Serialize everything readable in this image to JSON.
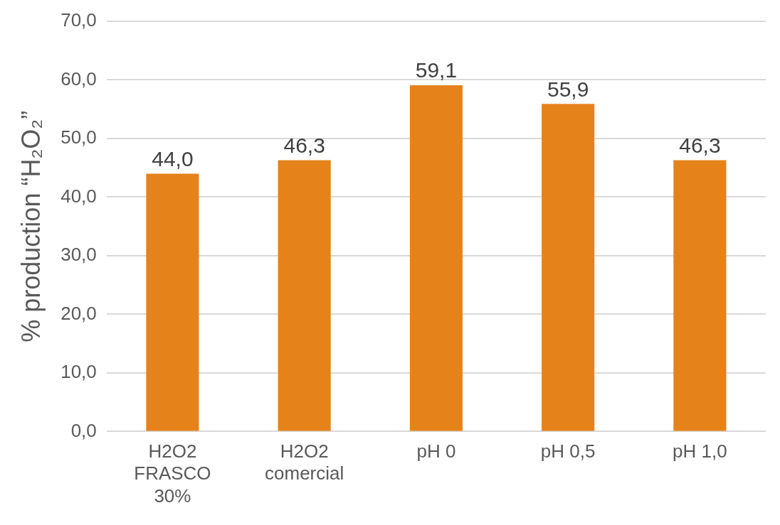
{
  "chart_data": {
    "type": "bar",
    "ylabel": "% production “H₂O₂”",
    "categories": [
      "H2O2 FRASCO 30%",
      "H2O2 comercial",
      "pH 0",
      "pH 0,5",
      "pH 1,0"
    ],
    "values": [
      44.0,
      46.3,
      59.1,
      55.9,
      46.3
    ],
    "value_labels": [
      "44,0",
      "46,3",
      "59,1",
      "55,9",
      "46,3"
    ],
    "color": "#e6821a",
    "ylim": [
      0,
      70
    ],
    "yticks": [
      {
        "value": 0,
        "label": "0,0"
      },
      {
        "value": 10,
        "label": "10,0"
      },
      {
        "value": 20,
        "label": "20,0"
      },
      {
        "value": 30,
        "label": "30,0"
      },
      {
        "value": 40,
        "label": "40,0"
      },
      {
        "value": 50,
        "label": "50,0"
      },
      {
        "value": 60,
        "label": "60,0"
      },
      {
        "value": 70,
        "label": "70,0"
      }
    ],
    "grid": "y",
    "legend": false
  }
}
